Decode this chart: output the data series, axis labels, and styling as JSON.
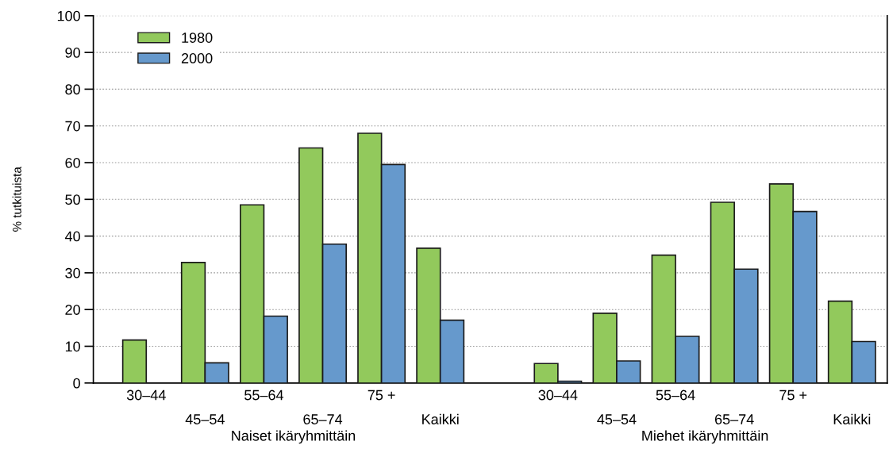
{
  "chart_data": {
    "type": "bar",
    "ylabel": "% tutkituista",
    "categories": [
      "30–44",
      "45–54",
      "55–64",
      "65–74",
      "75 +",
      "Kaikki",
      null,
      "30–44",
      "45–54",
      "55–64",
      "65–74",
      "75 +",
      "Kaikki"
    ],
    "series": [
      {
        "name": "1980",
        "color": "#92c95c",
        "values": [
          11.7,
          32.8,
          48.5,
          64,
          68,
          36.7,
          null,
          5.3,
          19,
          34.8,
          49.2,
          54.2,
          22.3
        ]
      },
      {
        "name": "2000",
        "color": "#6699cc",
        "values": [
          null,
          5.5,
          18.2,
          37.8,
          59.5,
          17.1,
          null,
          0.5,
          6,
          12.7,
          31,
          46.7,
          11.3
        ]
      }
    ],
    "ylim": [
      0,
      100
    ],
    "yticks": [
      0,
      10,
      20,
      30,
      40,
      50,
      60,
      70,
      80,
      90,
      100
    ],
    "grid": "y",
    "legend": "top left",
    "annotations": [
      "Naiset ikäryhmittäin",
      "Miehet ikäryhmittäin"
    ]
  }
}
